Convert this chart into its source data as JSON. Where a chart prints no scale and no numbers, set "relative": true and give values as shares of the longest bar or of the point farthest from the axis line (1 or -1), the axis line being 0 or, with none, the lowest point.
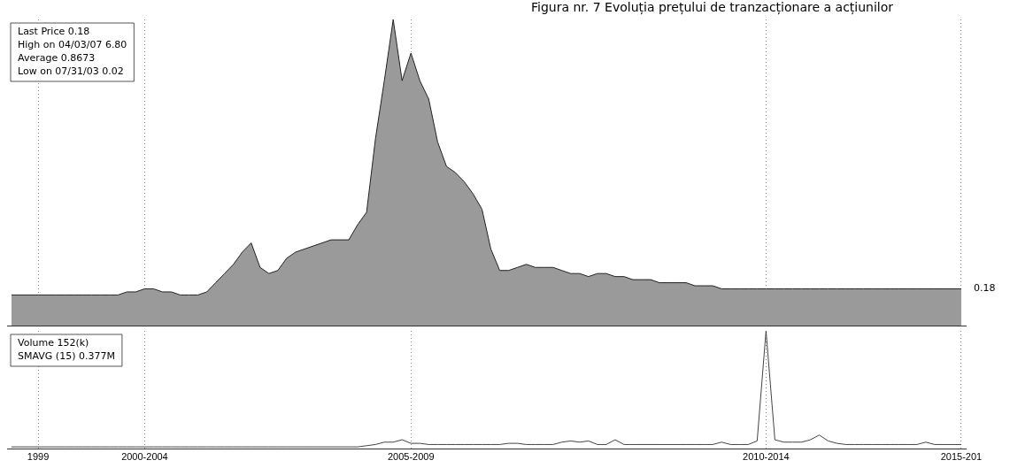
{
  "chart_data": [
    {
      "type": "area",
      "title": "Figura nr. 7 Evoluția prețului de tranzacționare a acțiunilor",
      "relative": true,
      "grid": "x",
      "tick_labels": false,
      "categories": [
        null,
        null,
        null,
        "1999",
        null,
        null,
        null,
        null,
        null,
        null,
        null,
        null,
        null,
        null,
        null,
        "2000-2004",
        null,
        null,
        null,
        null,
        null,
        null,
        null,
        null,
        null,
        null,
        null,
        null,
        null,
        null,
        null,
        null,
        null,
        null,
        null,
        null,
        null,
        null,
        null,
        null,
        null,
        null,
        null,
        null,
        null,
        "2005-2009",
        null,
        null,
        null,
        null,
        null,
        null,
        null,
        null,
        null,
        null,
        null,
        null,
        null,
        null,
        null,
        null,
        null,
        null,
        null,
        null,
        null,
        null,
        null,
        null,
        null,
        null,
        null,
        null,
        null,
        null,
        null,
        null,
        null,
        null,
        null,
        null,
        null,
        null,
        null,
        "2010-2014",
        null,
        null,
        null,
        null,
        null,
        null,
        null,
        null,
        null,
        null,
        null,
        null,
        null,
        null,
        null,
        null,
        null,
        null,
        null,
        null,
        null,
        "2015-201"
      ],
      "series": [
        {
          "color": "#9a9a9a",
          "values": [
            0.1,
            0.1,
            0.1,
            0.1,
            0.1,
            0.1,
            0.1,
            0.1,
            0.1,
            0.1,
            0.1,
            0.1,
            0.1,
            0.11,
            0.11,
            0.12,
            0.12,
            0.11,
            0.11,
            0.1,
            0.1,
            0.1,
            0.11,
            0.14,
            0.17,
            0.2,
            0.24,
            0.27,
            0.19,
            0.17,
            0.18,
            0.22,
            0.24,
            0.25,
            0.26,
            0.27,
            0.28,
            0.28,
            0.28,
            0.33,
            0.37,
            0.61,
            0.8,
            1,
            0.8,
            0.89,
            0.8,
            0.74,
            0.6,
            0.52,
            0.5,
            0.47,
            0.43,
            0.38,
            0.25,
            0.18,
            0.18,
            0.19,
            0.2,
            0.19,
            0.19,
            0.19,
            0.18,
            0.17,
            0.17,
            0.16,
            0.17,
            0.17,
            0.16,
            0.16,
            0.15,
            0.15,
            0.15,
            0.14,
            0.14,
            0.14,
            0.14,
            0.13,
            0.13,
            0.13,
            0.12,
            0.12,
            0.12,
            0.12,
            0.12,
            0.12,
            0.12,
            0.12,
            0.12,
            0.12,
            0.12,
            0.12,
            0.12,
            0.12,
            0.12,
            0.12,
            0.12,
            0.12,
            0.12,
            0.12,
            0.12,
            0.12,
            0.12,
            0.12,
            0.12,
            0.12,
            0.12,
            0.12
          ]
        }
      ],
      "annotations": [
        "Last Price 0.18",
        "High on 04/03/07 6.80",
        "Average 0.8673",
        "Low on 07/31/03 0.02",
        {
          "text": "0.18",
          "x": "2015-201",
          "y": 0.12
        }
      ]
    },
    {
      "type": "line",
      "relative": true,
      "grid": "x",
      "tick_labels": "x",
      "categories": [
        null,
        null,
        null,
        "1999",
        null,
        null,
        null,
        null,
        null,
        null,
        null,
        null,
        null,
        null,
        null,
        "2000-2004",
        null,
        null,
        null,
        null,
        null,
        null,
        null,
        null,
        null,
        null,
        null,
        null,
        null,
        null,
        null,
        null,
        null,
        null,
        null,
        null,
        null,
        null,
        null,
        null,
        null,
        null,
        null,
        null,
        null,
        "2005-2009",
        null,
        null,
        null,
        null,
        null,
        null,
        null,
        null,
        null,
        null,
        null,
        null,
        null,
        null,
        null,
        null,
        null,
        null,
        null,
        null,
        null,
        null,
        null,
        null,
        null,
        null,
        null,
        null,
        null,
        null,
        null,
        null,
        null,
        null,
        null,
        null,
        null,
        null,
        null,
        "2010-2014",
        null,
        null,
        null,
        null,
        null,
        null,
        null,
        null,
        null,
        null,
        null,
        null,
        null,
        null,
        null,
        null,
        null,
        null,
        null,
        null,
        null,
        "2015-201"
      ],
      "series": [
        {
          "color": "#444444",
          "values": [
            0.02,
            0.02,
            0.02,
            0.02,
            0.02,
            0.02,
            0.02,
            0.02,
            0.02,
            0.02,
            0.02,
            0.02,
            0.02,
            0.02,
            0.02,
            0.02,
            0.02,
            0.02,
            0.02,
            0.02,
            0.02,
            0.02,
            0.02,
            0.02,
            0.02,
            0.02,
            0.02,
            0.02,
            0.02,
            0.02,
            0.02,
            0.02,
            0.02,
            0.02,
            0.02,
            0.02,
            0.02,
            0.02,
            0.02,
            0.02,
            0.03,
            0.04,
            0.06,
            0.06,
            0.08,
            0.05,
            0.05,
            0.04,
            0.04,
            0.04,
            0.04,
            0.04,
            0.04,
            0.04,
            0.04,
            0.04,
            0.05,
            0.05,
            0.04,
            0.04,
            0.04,
            0.04,
            0.06,
            0.07,
            0.06,
            0.07,
            0.04,
            0.04,
            0.08,
            0.04,
            0.04,
            0.04,
            0.04,
            0.04,
            0.04,
            0.04,
            0.04,
            0.04,
            0.04,
            0.04,
            0.06,
            0.04,
            0.04,
            0.04,
            0.07,
            1,
            0.08,
            0.06,
            0.06,
            0.06,
            0.08,
            0.12,
            0.07,
            0.05,
            0.04,
            0.04,
            0.04,
            0.04,
            0.04,
            0.04,
            0.04,
            0.04,
            0.04,
            0.06,
            0.04,
            0.04,
            0.04,
            0.04
          ]
        }
      ],
      "annotations": [
        "Volume 152(k)",
        "SMAVG (15) 0.377M"
      ]
    }
  ]
}
